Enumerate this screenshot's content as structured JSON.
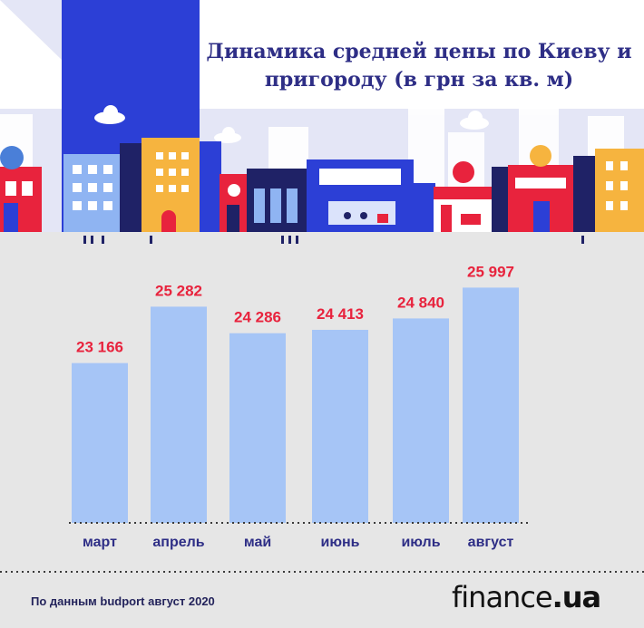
{
  "title": "Динамика средней цены по Киеву и пригороду (в грн за кв. м)",
  "source": "По данным budport август 2020",
  "logo": {
    "main": "finance",
    "suffix": ".ua"
  },
  "colors": {
    "bar": "#a6c5f6",
    "value_label": "#e8233d",
    "tick_label": "#2e2e86",
    "title": "#2e2e86",
    "background": "#e6e6e6"
  },
  "chart_data": {
    "type": "bar",
    "title": "Динамика средней цены по Киеву и пригороду (в грн за кв. м)",
    "categories": [
      "март",
      "апрель",
      "май",
      "июнь",
      "июль",
      "август"
    ],
    "values": [
      23166,
      25282,
      24286,
      24413,
      24840,
      25997
    ],
    "value_labels": [
      "23 166",
      "25 282",
      "24 286",
      "24 413",
      "24 840",
      "25 997"
    ],
    "xlabel": "",
    "ylabel": "",
    "grid": false,
    "legend": "none",
    "baseline_style": "dotted"
  }
}
